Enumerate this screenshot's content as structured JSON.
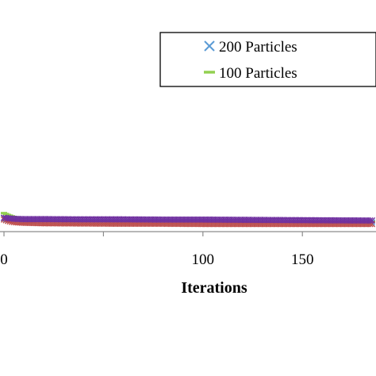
{
  "chart_data": {
    "type": "scatter",
    "xlabel": "Iterations",
    "ylabel": "",
    "xlim": [
      -2,
      187
    ],
    "ylim": [
      0,
      1
    ],
    "x_ticks": [
      0,
      50,
      100,
      150
    ],
    "x_tick_labels": [
      "0",
      "",
      "100",
      "150"
    ],
    "grid": false,
    "legend_position": "top-right",
    "series": [
      {
        "name": "200 Particles",
        "marker": "x",
        "color": "#5b9bd5",
        "x": [
          0,
          2,
          4,
          6,
          10,
          20,
          40,
          60,
          80,
          100,
          120,
          140,
          160,
          185
        ],
        "y": [
          0.058,
          0.052,
          0.05,
          0.047,
          0.045,
          0.044,
          0.043,
          0.042,
          0.042,
          0.041,
          0.041,
          0.041,
          0.04,
          0.04
        ]
      },
      {
        "name": "100 Particles",
        "marker": "dash",
        "color": "#92d050",
        "x": [
          0,
          2,
          4,
          6,
          8,
          10,
          20,
          40,
          60,
          80,
          100,
          120,
          140,
          160,
          185
        ],
        "y": [
          0.08,
          0.072,
          0.066,
          0.06,
          0.055,
          0.052,
          0.049,
          0.047,
          0.046,
          0.045,
          0.045,
          0.044,
          0.044,
          0.043,
          0.043
        ]
      },
      {
        "marker": "x",
        "color": "#7030a0",
        "x": [
          0,
          2,
          4,
          6,
          10,
          20,
          40,
          60,
          80,
          100,
          120,
          140,
          160,
          185
        ],
        "y": [
          0.06,
          0.058,
          0.056,
          0.055,
          0.054,
          0.054,
          0.053,
          0.053,
          0.052,
          0.052,
          0.051,
          0.05,
          0.049,
          0.048
        ]
      },
      {
        "marker": "x",
        "color": "#c0504d",
        "x": [
          0,
          2,
          4,
          6,
          10,
          20,
          40,
          60,
          80,
          100,
          120,
          140,
          160,
          185
        ],
        "y": [
          0.052,
          0.046,
          0.042,
          0.04,
          0.038,
          0.036,
          0.035,
          0.034,
          0.034,
          0.033,
          0.033,
          0.033,
          0.033,
          0.033
        ]
      }
    ]
  }
}
